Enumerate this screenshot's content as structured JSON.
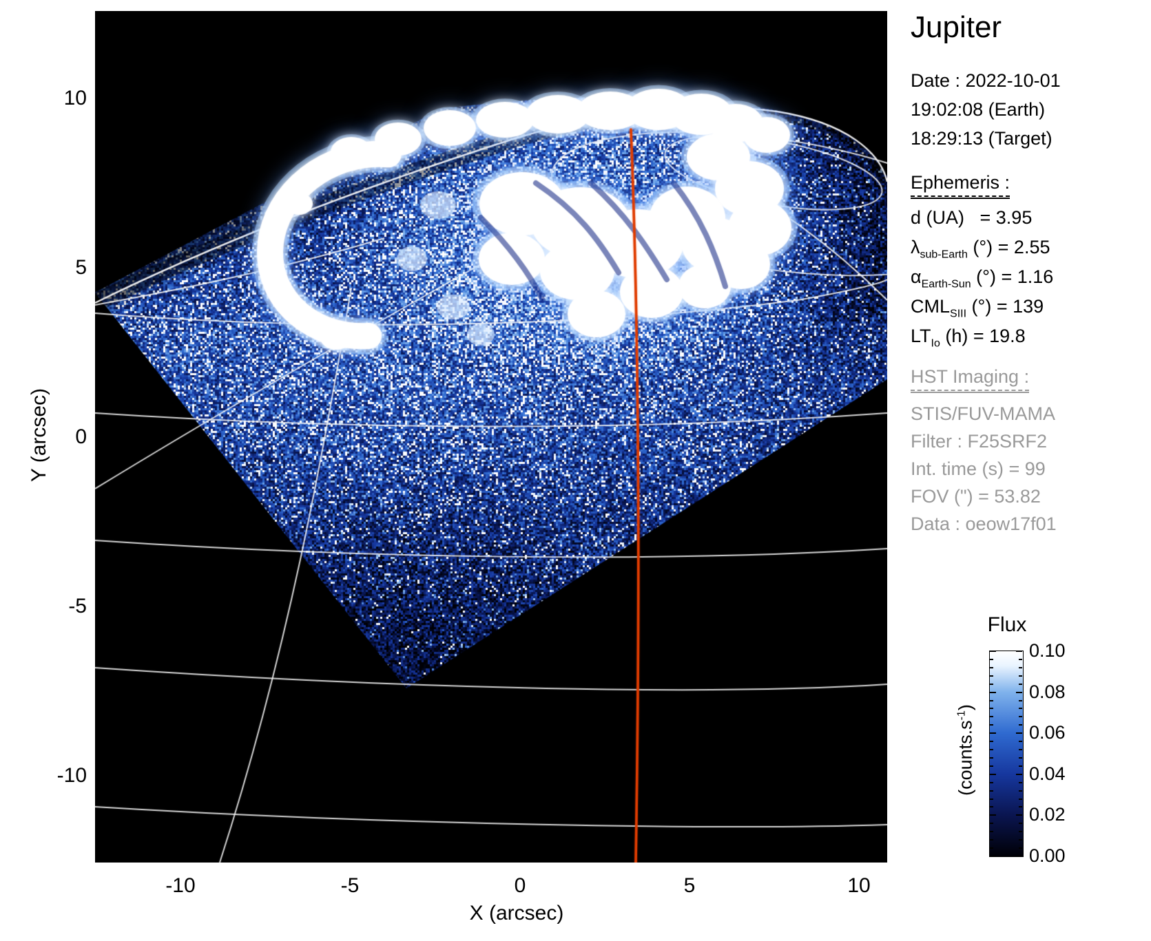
{
  "panel": {
    "title": "Jupiter",
    "date_lines": [
      "Date : 2022-10-01",
      "19:02:08 (Earth)",
      "18:29:13 (Target)"
    ],
    "ephemeris": {
      "header": "Ephemeris :",
      "rows": [
        {
          "sym": "d (UA)",
          "sub": "",
          "rest": "   = 3.95"
        },
        {
          "sym": "λ",
          "sub": "sub-Earth",
          "rest": " (°) = 2.55"
        },
        {
          "sym": "α",
          "sub": "Earth-Sun",
          "rest": " (°) = 1.16"
        },
        {
          "sym": "CML",
          "sub": "SIII",
          "rest": " (°) = 139"
        },
        {
          "sym": "LT",
          "sub": "Io",
          "rest": " (h) = 19.8"
        }
      ]
    },
    "hst": {
      "header": "HST Imaging :",
      "rows": [
        "STIS/FUV-MAMA",
        "Filter : F25SRF2",
        "Int. time (s) = 99",
        "FOV (\") = 53.82",
        "Data : oeow17f01"
      ]
    }
  },
  "axes": {
    "x_label": "X (arcsec)",
    "y_label": "Y (arcsec)",
    "x_ticks": [
      "-10",
      "-5",
      "0",
      "5",
      "10"
    ],
    "y_ticks": [
      "10",
      "5",
      "0",
      "-5",
      "-10"
    ]
  },
  "colorbar": {
    "title": "Flux",
    "unit_prefix": "(counts.s",
    "unit_sup": "-1",
    "unit_suffix": ")",
    "ticks": [
      "0.10",
      "0.08",
      "0.06",
      "0.04",
      "0.02",
      "0.00"
    ]
  },
  "colors": {
    "background": "#ffffff",
    "plot_bg": "#000000",
    "graticule": "#f2f2f2",
    "cml_line": "#e03c00",
    "aurora_core": "#ffffff",
    "noise_deep": "#0a1550",
    "noise_mid": "#16379e",
    "noise_bright": "#7fb2ec",
    "text": "#000000",
    "muted_text": "#999999"
  },
  "chart_data": {
    "type": "heatmap",
    "title": "Jupiter",
    "xlabel": "X (arcsec)",
    "ylabel": "Y (arcsec)",
    "x_range": [
      -12.5,
      10.8
    ],
    "y_range": [
      -12.5,
      12.6
    ],
    "x_tick_values": [
      -10,
      -5,
      0,
      5,
      10
    ],
    "y_tick_values": [
      10,
      5,
      0,
      -5,
      -10
    ],
    "colorbar": {
      "label": "Flux (counts.s-1)",
      "range": [
        0.0,
        0.1
      ],
      "tick_values": [
        0.1,
        0.08,
        0.06,
        0.04,
        0.02,
        0.0
      ],
      "colormap": "black-blue-white"
    },
    "content": "HST STIS/FUV-MAMA far-UV image of Jupiter north polar region: rotated-square detector field of view filled with blue photon noise, bright white auroral oval with crescent hook near top (centered ~x=2, y=7 arcsec), white planetary latitude/longitude graticule and limb arcs, red CML meridian line near x=3.4 arcsec",
    "annotations": [
      {
        "name": "CML meridian",
        "color": "#e03c00",
        "x_arcsec": 3.4
      },
      {
        "name": "auroral oval",
        "color": "#ffffff",
        "approx_center_arcsec": [
          2,
          7
        ]
      }
    ],
    "ephemeris": {
      "d_UA": 3.95,
      "lambda_subEarth_deg": 2.55,
      "alpha_EarthSun_deg": 1.16,
      "CML_SIII_deg": 139,
      "LT_Io_h": 19.8
    },
    "instrument": {
      "observatory": "HST",
      "detector": "STIS/FUV-MAMA",
      "filter": "F25SRF2",
      "int_time_s": 99,
      "fov_arcsec": 53.82,
      "dataset": "oeow17f01"
    },
    "datetime": {
      "date": "2022-10-01",
      "earth_time": "19:02:08",
      "target_time": "18:29:13"
    }
  }
}
